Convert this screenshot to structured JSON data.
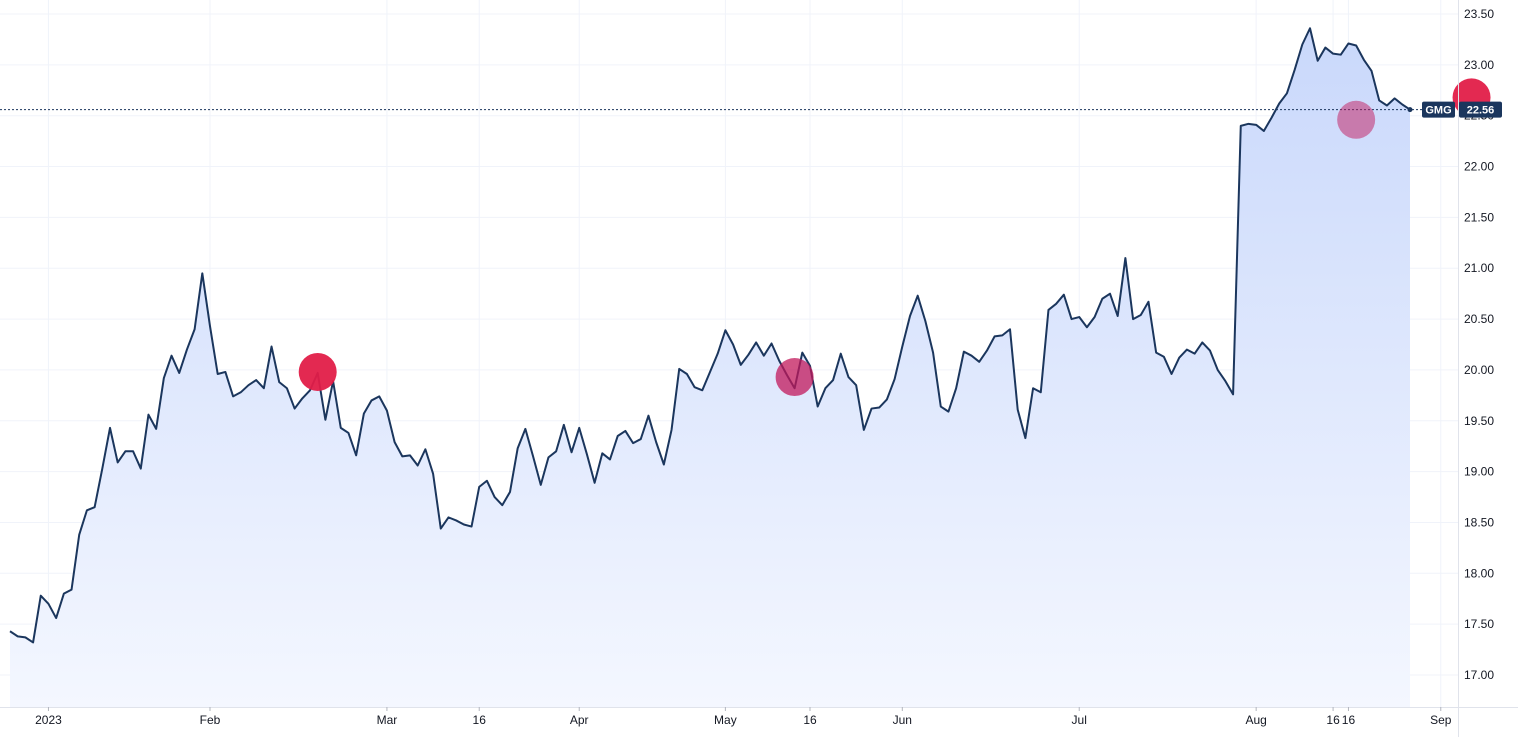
{
  "chart_data": {
    "type": "area",
    "symbol": "GMG",
    "last_price_label": "22.56",
    "last_price": 22.56,
    "x_unit": "trading day index (2023)",
    "ylim": [
      16.7,
      23.55
    ],
    "y_ticks": [
      17.0,
      17.5,
      18.0,
      18.5,
      19.0,
      19.5,
      20.0,
      20.5,
      21.0,
      21.5,
      22.0,
      22.5,
      23.0,
      23.5
    ],
    "y_tick_labels": [
      "17.00",
      "17.50",
      "18.00",
      "18.50",
      "19.00",
      "19.50",
      "20.00",
      "20.50",
      "21.00",
      "21.50",
      "22.00",
      "22.50",
      "23.00",
      "23.50"
    ],
    "x_ticks": [
      {
        "label": "2023",
        "index": 5
      },
      {
        "label": "Feb",
        "index": 26
      },
      {
        "label": "Mar",
        "index": 49
      },
      {
        "label": "16",
        "index": 61
      },
      {
        "label": "Apr",
        "index": 74
      },
      {
        "label": "May",
        "index": 93
      },
      {
        "label": "16",
        "index": 104
      },
      {
        "label": "Jun",
        "index": 116
      },
      {
        "label": "Jul",
        "index": 139
      },
      {
        "label": "Aug",
        "index": 162
      },
      {
        "label": "16",
        "index": 172
      },
      {
        "label": "16",
        "index": 174
      },
      {
        "label": "Sep",
        "index": 186
      }
    ],
    "series": [
      {
        "values": [
          17.43,
          17.38,
          17.37,
          17.32,
          17.78,
          17.7,
          17.56,
          17.8,
          17.84,
          18.38,
          18.62,
          18.65,
          19.03,
          19.43,
          19.09,
          19.2,
          19.2,
          19.03,
          19.56,
          19.42,
          19.92,
          20.14,
          19.97,
          20.2,
          20.4,
          20.95,
          20.43,
          19.96,
          19.98,
          19.74,
          19.78,
          19.85,
          19.9,
          19.82,
          20.23,
          19.88,
          19.82,
          19.62,
          19.72,
          19.8,
          19.97,
          19.51,
          19.89,
          19.43,
          19.38,
          19.16,
          19.57,
          19.7,
          19.74,
          19.6,
          19.29,
          19.15,
          19.16,
          19.06,
          19.22,
          18.98,
          18.44,
          18.55,
          18.52,
          18.48,
          18.46,
          18.85,
          18.91,
          18.75,
          18.67,
          18.8,
          19.23,
          19.42,
          19.15,
          18.87,
          19.14,
          19.2,
          19.46,
          19.19,
          19.43,
          19.17,
          18.89,
          19.18,
          19.12,
          19.35,
          19.4,
          19.28,
          19.32,
          19.55,
          19.29,
          19.07,
          19.41,
          20.01,
          19.96,
          19.83,
          19.8,
          19.98,
          20.16,
          20.39,
          20.25,
          20.05,
          20.15,
          20.27,
          20.14,
          20.26,
          20.09,
          19.95,
          19.82,
          20.17,
          20.04,
          19.64,
          19.82,
          19.9,
          20.16,
          19.93,
          19.85,
          19.41,
          19.62,
          19.63,
          19.71,
          19.91,
          20.23,
          20.53,
          20.73,
          20.48,
          20.17,
          19.64,
          19.59,
          19.82,
          20.18,
          20.14,
          20.08,
          20.19,
          20.33,
          20.34,
          20.4,
          19.61,
          19.33,
          19.82,
          19.78,
          20.59,
          20.65,
          20.74,
          20.5,
          20.52,
          20.42,
          20.52,
          20.7,
          20.75,
          20.53,
          21.1,
          20.5,
          20.54,
          20.67,
          20.17,
          20.13,
          19.96,
          20.12,
          20.2,
          20.16,
          20.27,
          20.19,
          20.0,
          19.89,
          19.76,
          22.4,
          22.42,
          22.41,
          22.35,
          22.48,
          22.62,
          22.72,
          22.95,
          23.2,
          23.36,
          23.04,
          23.17,
          23.11,
          23.1,
          23.21,
          23.19,
          23.05,
          22.94,
          22.65,
          22.6,
          22.67,
          22.61,
          22.56
        ]
      }
    ],
    "markers": [
      {
        "index": 40,
        "value": 19.98,
        "color": "#e11d48",
        "opacity": 0.95
      },
      {
        "index": 102,
        "value": 19.93,
        "color": "#c2185b",
        "opacity": 0.75
      },
      {
        "index": 175,
        "value": 22.46,
        "color": "#c2185b",
        "opacity": 0.5
      },
      {
        "index": 190,
        "value": 22.68,
        "color": "#e11d48",
        "opacity": 0.95
      }
    ],
    "colors": {
      "line": "#1b365d",
      "area_top": "#c9d8fb",
      "area_bottom": "#f4f7ff",
      "grid": "#f0f3fa",
      "badge": "#1b365d",
      "axis_text": "#131722"
    }
  }
}
